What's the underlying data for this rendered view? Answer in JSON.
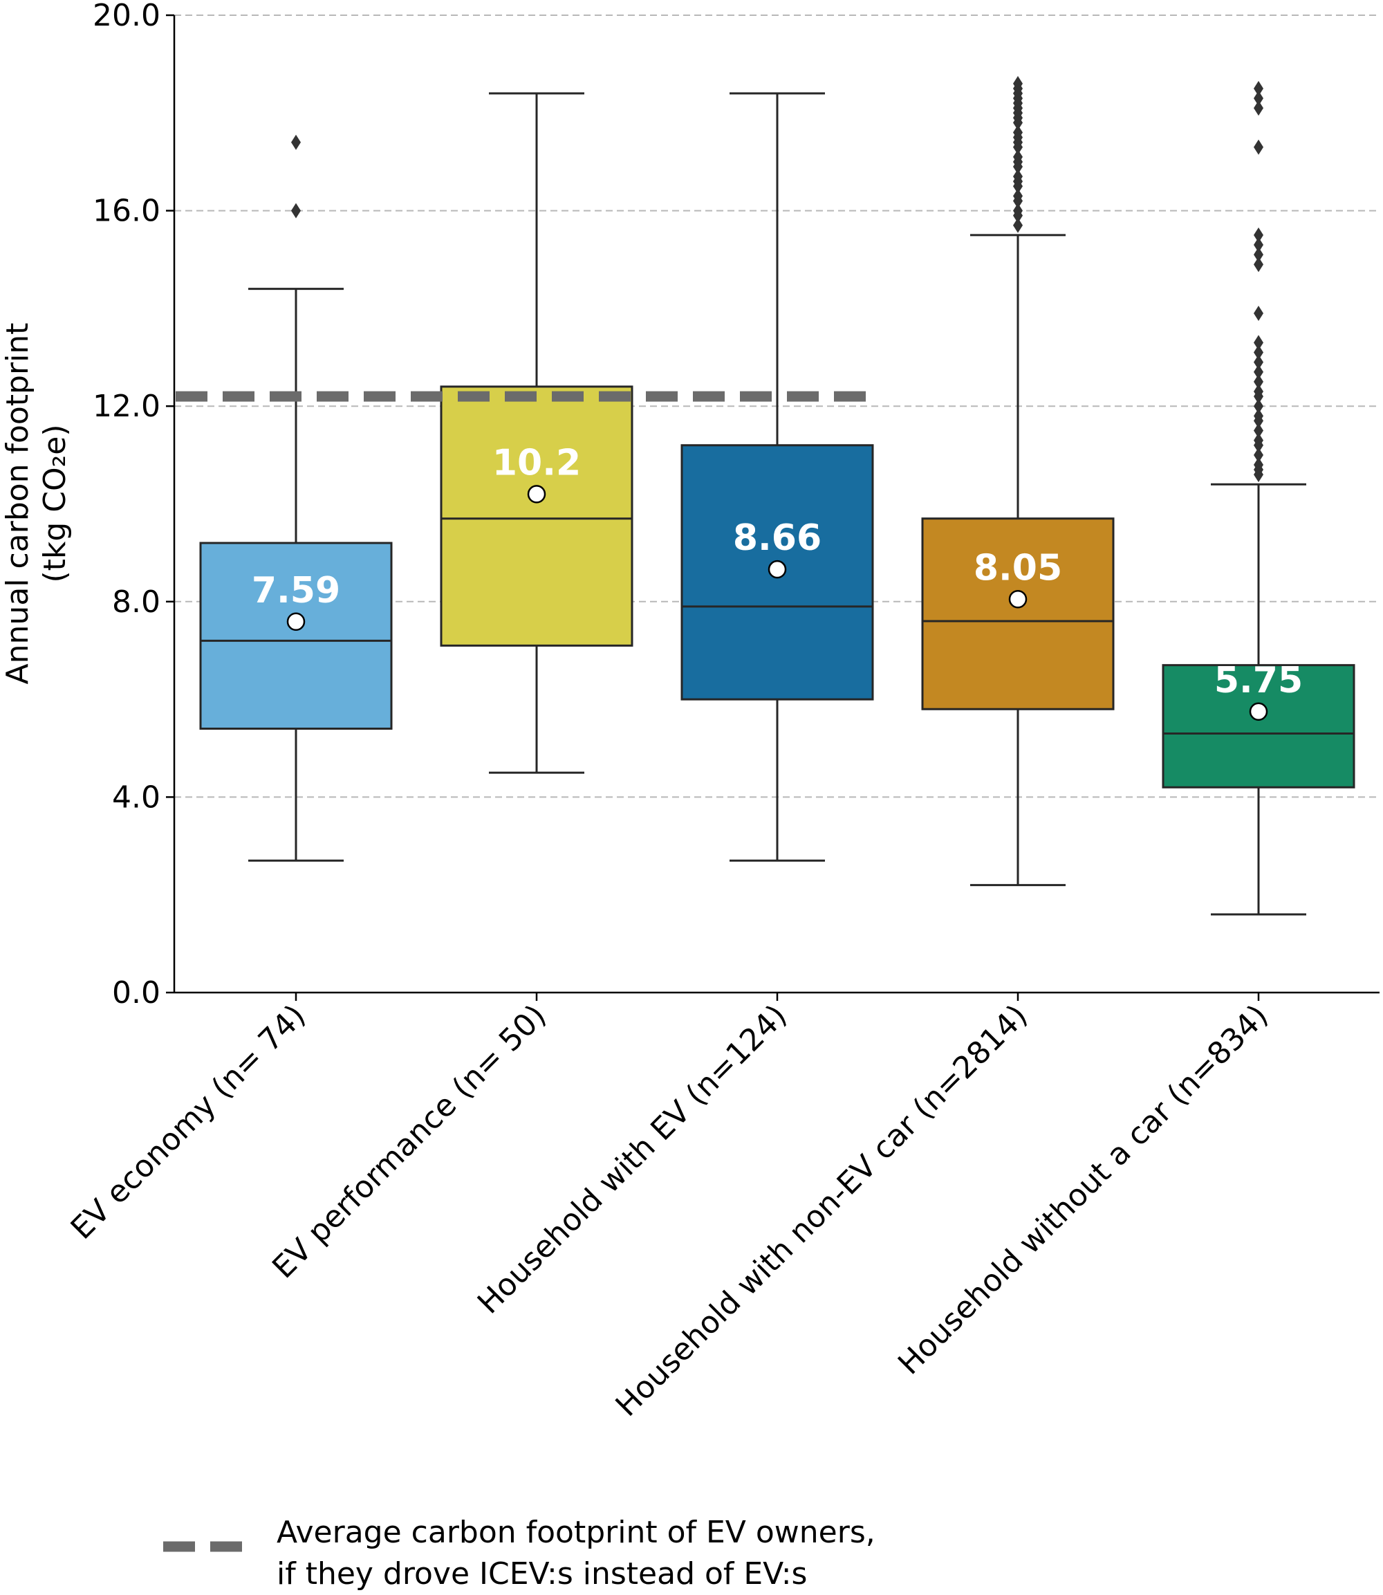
{
  "chart_data": {
    "type": "box",
    "ylabel": "Annual carbon footprint",
    "ylabel_units": "(tkg CO₂e)",
    "ylim": [
      0,
      20
    ],
    "yticks": [
      0,
      4,
      8,
      12,
      16,
      20
    ],
    "ytick_labels": [
      "0.0",
      "4.0",
      "8.0",
      "12.0",
      "16.0",
      "20.0"
    ],
    "grid": "horizontal dashed",
    "categories": [
      "EV economy (n= 74)",
      "EV performance (n= 50)",
      "Household with EV (n=124)",
      "Household with non-EV car (n=2814)",
      "Household without a car (n=834)"
    ],
    "colors": [
      "#67afda",
      "#d7cf4a",
      "#186d9f",
      "#c38822",
      "#168b64"
    ],
    "series": [
      {
        "name": "EV economy (n= 74)",
        "whisker_low": 2.7,
        "q1": 5.4,
        "median": 7.2,
        "q3": 9.2,
        "whisker_high": 14.4,
        "mean": 7.59,
        "mean_label": "7.59",
        "outliers": [
          16.0,
          17.4
        ]
      },
      {
        "name": "EV performance (n= 50)",
        "whisker_low": 4.5,
        "q1": 7.1,
        "median": 9.7,
        "q3": 12.4,
        "whisker_high": 18.4,
        "mean": 10.2,
        "mean_label": "10.2",
        "outliers": []
      },
      {
        "name": "Household with EV (n=124)",
        "whisker_low": 2.7,
        "q1": 6.0,
        "median": 7.9,
        "q3": 11.2,
        "whisker_high": 18.4,
        "mean": 8.66,
        "mean_label": "8.66",
        "outliers": []
      },
      {
        "name": "Household with non-EV car (n=2814)",
        "whisker_low": 2.2,
        "q1": 5.8,
        "median": 7.6,
        "q3": 9.7,
        "whisker_high": 15.5,
        "mean": 8.05,
        "mean_label": "8.05",
        "outliers": [
          15.7,
          15.9,
          16.0,
          16.2,
          16.3,
          16.5,
          16.6,
          16.7,
          16.9,
          17.0,
          17.1,
          17.3,
          17.4,
          17.5,
          17.6,
          17.8,
          17.9,
          18.0,
          18.1,
          18.2,
          18.3,
          18.4,
          18.5,
          18.6
        ]
      },
      {
        "name": "Household without a car (n=834)",
        "whisker_low": 1.6,
        "q1": 4.2,
        "median": 5.3,
        "q3": 6.7,
        "whisker_high": 10.4,
        "mean": 5.75,
        "mean_label": "5.75",
        "outliers": [
          10.6,
          10.7,
          10.8,
          11.0,
          11.2,
          11.3,
          11.5,
          11.7,
          11.8,
          12.0,
          12.2,
          12.3,
          12.5,
          12.7,
          12.9,
          13.1,
          13.3,
          13.9,
          14.9,
          15.1,
          15.3,
          15.5,
          17.3,
          18.1,
          18.3,
          18.5
        ]
      }
    ],
    "reference_line": {
      "value": 12.2,
      "x_from_category": 0,
      "x_to_category": 2,
      "color": "#6b6b6b"
    },
    "legend": {
      "position": "bottom-left",
      "line1": "Average carbon footprint of EV owners,",
      "line2": "if they drove ICEV:s instead of EV:s"
    }
  }
}
